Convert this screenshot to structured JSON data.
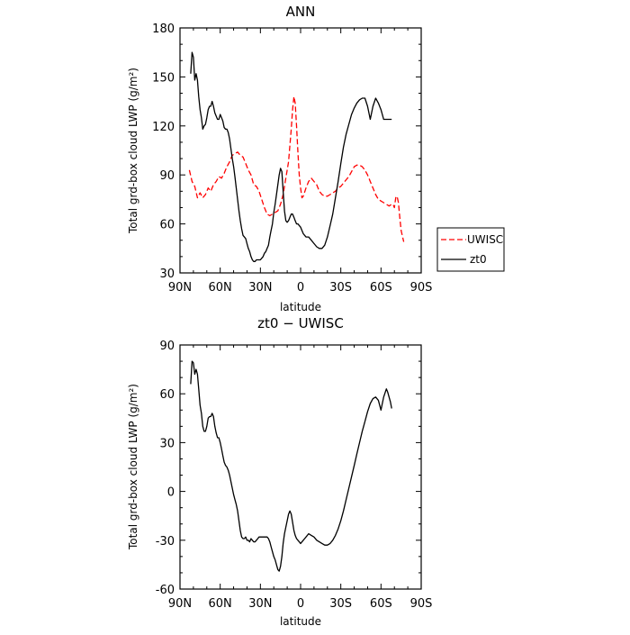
{
  "chart_data": [
    {
      "type": "line",
      "title": "ANN",
      "xlabel": "latitude",
      "ylabel": "Total grd-box cloud LWP (g/m²)",
      "xlim": [
        90,
        -90
      ],
      "ylim": [
        30,
        180
      ],
      "x_tick_values": [
        90,
        60,
        30,
        0,
        -30,
        -60,
        -90
      ],
      "x_tick_labels": [
        "90N",
        "60N",
        "30N",
        "0",
        "30S",
        "60S",
        "90S"
      ],
      "y_ticks": [
        30,
        60,
        90,
        120,
        150,
        180
      ],
      "legend": {
        "placement": "outside-right"
      },
      "series": [
        {
          "name": "UWISC",
          "color": "#ff0000",
          "dash": "dashed",
          "x": [
            83,
            81,
            79,
            77,
            75,
            73,
            71,
            69,
            67,
            65,
            63,
            61,
            59,
            57,
            55,
            53,
            51,
            49,
            47,
            45,
            43,
            41,
            39,
            37,
            35,
            33,
            31,
            29,
            27,
            25,
            23,
            21,
            19,
            17,
            15,
            13,
            11,
            9,
            8,
            7,
            6,
            5,
            4,
            3,
            2,
            1,
            0,
            -1,
            -2,
            -4,
            -6,
            -8,
            -10,
            -12,
            -14,
            -16,
            -18,
            -20,
            -22,
            -24,
            -26,
            -28,
            -30,
            -32,
            -34,
            -36,
            -38,
            -40,
            -42,
            -44,
            -46,
            -48,
            -50,
            -52,
            -54,
            -56,
            -58,
            -60,
            -62,
            -64,
            -66,
            -68,
            -69,
            -70,
            -71,
            -72,
            -73,
            -74,
            -75,
            -77
          ],
          "y": [
            93,
            86,
            83,
            76,
            79,
            76,
            78,
            82,
            80,
            84,
            86,
            89,
            88,
            91,
            95,
            98,
            102,
            103,
            104,
            102,
            101,
            97,
            93,
            90,
            84,
            83,
            80,
            75,
            70,
            66,
            65,
            66,
            67,
            68,
            72,
            78,
            88,
            98,
            108,
            118,
            130,
            138,
            134,
            120,
            104,
            90,
            82,
            76,
            77,
            82,
            86,
            88,
            86,
            84,
            80,
            78,
            77,
            77,
            78,
            79,
            80,
            82,
            83,
            85,
            87,
            89,
            92,
            95,
            96,
            96,
            95,
            93,
            90,
            86,
            82,
            78,
            75,
            74,
            73,
            72,
            71,
            72,
            72,
            70,
            76,
            77,
            73,
            64,
            56,
            49
          ]
        },
        {
          "name": "zt0",
          "color": "#000000",
          "dash": "solid",
          "x": [
            82,
            81,
            80,
            79,
            78,
            77,
            76,
            75,
            74,
            73,
            72,
            71,
            70,
            69,
            68,
            67,
            66,
            65,
            64,
            63,
            62,
            61,
            60,
            59,
            58,
            57,
            56,
            55,
            54,
            53,
            52,
            51,
            50,
            49,
            48,
            47,
            46,
            45,
            44,
            43,
            42,
            41,
            40,
            39,
            38,
            37,
            36,
            35,
            34,
            33,
            32,
            31,
            30,
            29,
            28,
            27,
            26,
            25,
            24,
            23,
            22,
            21,
            20,
            19,
            18,
            17,
            16,
            15,
            14,
            13,
            12,
            11,
            10,
            9,
            8,
            7,
            6,
            5,
            4,
            3,
            2,
            1,
            0,
            -1,
            -2,
            -3,
            -4,
            -6,
            -8,
            -10,
            -12,
            -14,
            -16,
            -18,
            -20,
            -22,
            -24,
            -26,
            -28,
            -30,
            -32,
            -34,
            -36,
            -38,
            -40,
            -42,
            -44,
            -46,
            -48,
            -50,
            -52,
            -54,
            -56,
            -58,
            -60,
            -62,
            -64,
            -65,
            -66,
            -67,
            -68
          ],
          "y": [
            152,
            165,
            162,
            148,
            152,
            148,
            138,
            130,
            125,
            118,
            120,
            121,
            125,
            130,
            132,
            132,
            135,
            132,
            128,
            126,
            124,
            124,
            127,
            125,
            123,
            119,
            118,
            118,
            116,
            112,
            106,
            100,
            95,
            89,
            82,
            75,
            68,
            62,
            57,
            53,
            52,
            51,
            48,
            45,
            43,
            40,
            38,
            37,
            37,
            38,
            38,
            38,
            38,
            39,
            40,
            42,
            43,
            45,
            47,
            52,
            56,
            60,
            67,
            72,
            78,
            84,
            90,
            94,
            92,
            80,
            68,
            62,
            61,
            62,
            64,
            66,
            66,
            64,
            62,
            60,
            60,
            59,
            58,
            56,
            54,
            53,
            52,
            52,
            50,
            48,
            46,
            45,
            45,
            47,
            52,
            59,
            66,
            76,
            86,
            97,
            107,
            115,
            121,
            127,
            131,
            134,
            136,
            137,
            137,
            132,
            124,
            132,
            137,
            134,
            130,
            124,
            124,
            124,
            124,
            124,
            124
          ]
        }
      ]
    },
    {
      "type": "line",
      "title": "zt0 − UWISC",
      "xlabel": "latitude",
      "ylabel": "Total grd-box cloud LWP (g/m²)",
      "xlim": [
        90,
        -90
      ],
      "ylim": [
        -60,
        90
      ],
      "x_tick_values": [
        90,
        60,
        30,
        0,
        -30,
        -60,
        -90
      ],
      "x_tick_labels": [
        "90N",
        "60N",
        "30N",
        "0",
        "30S",
        "60S",
        "90S"
      ],
      "y_ticks": [
        -60,
        -30,
        0,
        30,
        60,
        90
      ],
      "series": [
        {
          "color": "#000000",
          "dash": "solid",
          "x": [
            82,
            81,
            80,
            79,
            78,
            77,
            76,
            75,
            74,
            73,
            72,
            71,
            70,
            69,
            68,
            67,
            66,
            65,
            64,
            63,
            62,
            61,
            60,
            59,
            58,
            57,
            56,
            55,
            54,
            53,
            52,
            51,
            50,
            49,
            48,
            47,
            46,
            45,
            44,
            43,
            42,
            41,
            40,
            39,
            38,
            37,
            36,
            35,
            34,
            33,
            32,
            31,
            30,
            29,
            28,
            27,
            26,
            25,
            24,
            23,
            22,
            21,
            20,
            19,
            18,
            17,
            16,
            15,
            14,
            13,
            12,
            11,
            10,
            9,
            8,
            7,
            6,
            5,
            4,
            3,
            2,
            1,
            0,
            -1,
            -2,
            -3,
            -4,
            -6,
            -8,
            -10,
            -12,
            -14,
            -16,
            -18,
            -20,
            -22,
            -24,
            -26,
            -28,
            -30,
            -32,
            -34,
            -36,
            -38,
            -40,
            -42,
            -44,
            -46,
            -48,
            -50,
            -52,
            -54,
            -56,
            -58,
            -60,
            -62,
            -64,
            -65,
            -66,
            -67,
            -68
          ],
          "y": [
            66,
            80,
            79,
            72,
            75,
            72,
            63,
            53,
            48,
            40,
            37,
            37,
            40,
            45,
            46,
            46,
            48,
            46,
            40,
            36,
            33,
            33,
            30,
            26,
            22,
            18,
            16,
            15,
            13,
            10,
            6,
            2,
            -2,
            -5,
            -8,
            -12,
            -18,
            -24,
            -28,
            -29,
            -29,
            -28,
            -30,
            -30,
            -31,
            -29,
            -30,
            -31,
            -31,
            -30,
            -29,
            -28,
            -28,
            -28,
            -28,
            -28,
            -28,
            -28,
            -29,
            -31,
            -34,
            -37,
            -40,
            -42,
            -45,
            -48,
            -49,
            -46,
            -40,
            -32,
            -26,
            -22,
            -18,
            -14,
            -12,
            -14,
            -19,
            -24,
            -27,
            -29,
            -30,
            -31,
            -32,
            -31,
            -30,
            -29,
            -28,
            -26,
            -27,
            -28,
            -30,
            -31,
            -32,
            -33,
            -33,
            -32,
            -30,
            -27,
            -23,
            -18,
            -12,
            -5,
            2,
            9,
            16,
            23,
            30,
            37,
            43,
            49,
            54,
            57,
            58,
            56,
            50,
            58,
            63,
            61,
            58,
            55,
            51
          ]
        }
      ]
    }
  ]
}
